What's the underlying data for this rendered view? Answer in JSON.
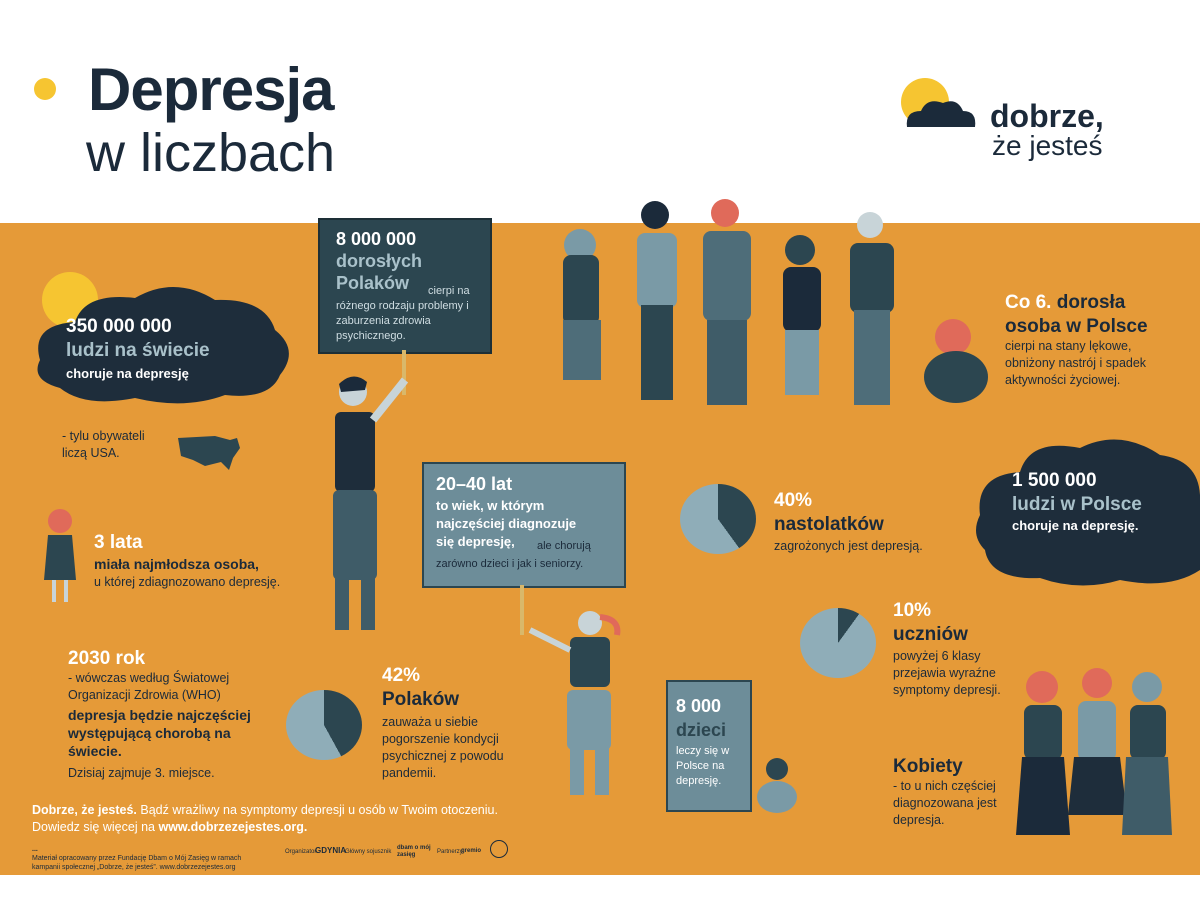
{
  "header": {
    "title_bold": "Depresja",
    "title_light": "w liczbach",
    "brand_line1": "dobrze,",
    "brand_line2": "że jesteś"
  },
  "stats": {
    "world": {
      "number": "350 000 000",
      "line2": "ludzi na świecie",
      "line3": "choruje na depresję",
      "note": "- tylu obywateli liczą USA."
    },
    "adults": {
      "number": "8 000 000",
      "line2": "dorosłych",
      "line3": "Polaków",
      "text": "cierpi na różnego rodzaju problemy i zaburzenia zdrowia psychicznego."
    },
    "every6": {
      "head1": "Co 6.",
      "head1b": "dorosła",
      "head2": "osoba w Polsce",
      "text": "cierpi na stany lękowe, obniżony nastrój i spadek aktywności życiowej."
    },
    "poland": {
      "number": "1 500 000",
      "line2": "ludzi w Polsce",
      "line3": "choruje na depresję."
    },
    "age": {
      "number": "3 lata",
      "bold": "miała najmłodsza osoba,",
      "text": "u której zdiagnozowano depresję."
    },
    "range": {
      "number": "20–40 lat",
      "bold1": "to wiek, w którym",
      "bold2": "najczęściej diagnozuje",
      "bold3": "się depresję,",
      "text": "ale chorują zarówno dzieci i jak i seniorzy."
    },
    "teens": {
      "number": "40%",
      "bold": "nastolatków",
      "text": "zagrożonych jest depresją."
    },
    "year": {
      "number": "2030 rok",
      "text": "- wówczas według Światowej Organizacji Zdrowia (WHO)",
      "bold": "depresja będzie najczęściej występującą chorobą na świecie.",
      "text2": "Dzisiaj zajmuje 3. miejsce."
    },
    "poles": {
      "number": "42%",
      "bold": "Polaków",
      "text": "zauważa u siebie pogorszenie kondycji psychicznej z powodu pandemii."
    },
    "students": {
      "number": "10%",
      "bold": "uczniów",
      "text": "powyżej 6 klasy przejawia wyraźne symptomy depresji."
    },
    "children": {
      "number": "8 000",
      "bold": "dzieci",
      "text": "leczy się w Polsce na depresję."
    },
    "women": {
      "bold": "Kobiety",
      "text": "- to u nich częściej diagnozowana jest depresja."
    }
  },
  "footer": {
    "bold": "Dobrze, że jesteś.",
    "text": "Bądź wrażliwy na symptomy depresji u osób w Twoim otoczeniu.",
    "text2": "Dowiedz się więcej na",
    "url": "www.dobrzezejestes.org.",
    "ellipsis": "...",
    "credit1": "Materiał opracowany przez Fundację Dbam o Mój Zasięg w ramach",
    "credit2": "kampanii społecznej „Dobrze, że jesteś”. www.dobrzezejestes.org",
    "partners": [
      "Organizator",
      "GDYNIA",
      "Główny sojusznik",
      "dbam o mój zasięg",
      "Partnerzy",
      "gremio"
    ]
  },
  "pies": {
    "teens": 40,
    "poles": 42,
    "students": 10
  },
  "colors": {
    "orange": "#e59a38",
    "navy": "#1b2a3a",
    "slate": "#2c4650",
    "grey": "#7a9aa6",
    "yellow": "#f6c531"
  }
}
